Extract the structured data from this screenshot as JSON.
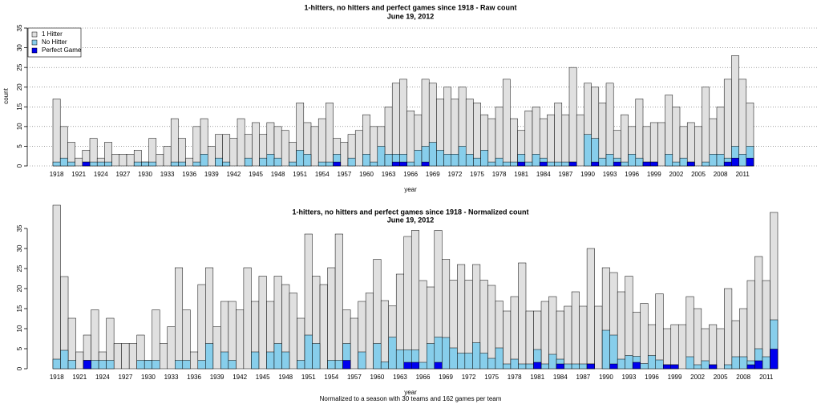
{
  "chart_data": [
    {
      "type": "bar",
      "title": "1-hitters, no hitters and perfect games since 1918 - Raw count",
      "subtitle": "June 19, 2012",
      "xlabel": "year",
      "ylabel": "count",
      "ylim": [
        0,
        35
      ],
      "yticks": [
        0,
        5,
        10,
        15,
        20,
        25,
        30,
        35
      ],
      "grid": true,
      "legend": "top-left",
      "categories": [
        "1918",
        null,
        null,
        "1921",
        null,
        null,
        "1924",
        null,
        null,
        "1927",
        null,
        null,
        "1930",
        null,
        null,
        "1933",
        null,
        null,
        "1936",
        null,
        null,
        "1939",
        null,
        null,
        "1942",
        null,
        null,
        "1945",
        null,
        null,
        "1948",
        null,
        null,
        "1951",
        null,
        null,
        "1954",
        null,
        null,
        "1957",
        null,
        null,
        "1960",
        null,
        null,
        "1963",
        null,
        null,
        "1966",
        null,
        null,
        "1969",
        null,
        null,
        "1972",
        null,
        null,
        "1975",
        null,
        null,
        "1978",
        null,
        null,
        "1981",
        null,
        null,
        "1984",
        null,
        null,
        "1987",
        null,
        null,
        "1990",
        null,
        null,
        "1993",
        null,
        null,
        "1996",
        null,
        null,
        "1999",
        null,
        null,
        "2002",
        null,
        null,
        "2005",
        null,
        null,
        "2008",
        null,
        null,
        "2011",
        null
      ],
      "series": [
        {
          "name": "1 Hitter",
          "color": "#e0e0e0",
          "values": [
            17,
            10,
            6,
            2,
            4,
            7,
            2,
            6,
            3,
            3,
            3,
            4,
            1,
            7,
            3,
            5,
            12,
            7,
            2,
            10,
            12,
            5,
            8,
            8,
            7,
            12,
            8,
            11,
            8,
            11,
            10,
            9,
            6,
            16,
            11,
            10,
            12,
            16,
            7,
            6,
            8,
            9,
            13,
            10,
            10,
            15,
            21,
            22,
            14,
            13,
            22,
            21,
            17,
            20,
            17,
            20,
            17,
            16,
            13,
            12,
            15,
            22,
            12,
            9,
            14,
            15,
            12,
            13,
            16,
            13,
            25,
            13,
            21,
            20,
            16,
            21,
            9,
            13,
            10,
            17,
            10,
            11,
            11,
            18,
            15,
            10,
            11,
            10,
            20,
            12,
            15,
            22,
            28,
            22,
            16
          ]
        },
        {
          "name": "No Hitter",
          "color": "#87ceeb",
          "values": [
            1,
            2,
            1,
            0,
            1,
            1,
            1,
            1,
            0,
            0,
            0,
            1,
            1,
            1,
            0,
            0,
            1,
            1,
            0,
            1,
            3,
            0,
            2,
            1,
            0,
            0,
            2,
            0,
            2,
            3,
            2,
            0,
            1,
            4,
            3,
            0,
            1,
            1,
            3,
            0,
            2,
            0,
            3,
            1,
            5,
            3,
            3,
            3,
            1,
            4,
            5,
            6,
            4,
            3,
            3,
            5,
            3,
            2,
            4,
            1,
            2,
            1,
            1,
            3,
            1,
            3,
            2,
            1,
            1,
            1,
            1,
            0,
            8,
            7,
            2,
            3,
            2,
            1,
            3,
            2,
            1,
            1,
            0,
            3,
            1,
            2,
            1,
            0,
            1,
            3,
            3,
            2,
            5,
            3,
            5
          ]
        },
        {
          "name": "Perfect Game",
          "color": "#0000ee",
          "values": [
            0,
            0,
            0,
            0,
            1,
            0,
            0,
            0,
            0,
            0,
            0,
            0,
            0,
            0,
            0,
            0,
            0,
            0,
            0,
            0,
            0,
            0,
            0,
            0,
            0,
            0,
            0,
            0,
            0,
            0,
            0,
            0,
            0,
            0,
            0,
            0,
            0,
            0,
            1,
            0,
            0,
            0,
            0,
            0,
            0,
            0,
            1,
            1,
            0,
            0,
            1,
            0,
            0,
            0,
            0,
            0,
            0,
            0,
            0,
            0,
            0,
            0,
            0,
            1,
            0,
            0,
            1,
            0,
            0,
            0,
            1,
            0,
            0,
            1,
            0,
            0,
            1,
            0,
            0,
            0,
            1,
            1,
            0,
            0,
            0,
            0,
            1,
            0,
            0,
            0,
            0,
            1,
            2,
            0,
            2
          ]
        }
      ]
    },
    {
      "type": "bar",
      "title": "1-hitters, no hitters and perfect games since 1918 - Normalized count",
      "subtitle": "June 19, 2012",
      "xlabel": "year",
      "caption": "Normalized to a season with 30 teams and 162 games per team",
      "ylim": [
        0,
        41.6
      ],
      "yticks": [
        0,
        5,
        10,
        15,
        20,
        25,
        30,
        35
      ],
      "grid": false,
      "categories": [
        "1918",
        null,
        null,
        "1921",
        null,
        null,
        "1924",
        null,
        null,
        "1927",
        null,
        null,
        "1930",
        null,
        null,
        "1933",
        null,
        null,
        "1936",
        null,
        null,
        "1939",
        null,
        null,
        "1942",
        null,
        null,
        "1945",
        null,
        null,
        "1948",
        null,
        null,
        "1951",
        null,
        null,
        "1954",
        null,
        null,
        "1957",
        null,
        null,
        "1960",
        null,
        null,
        "1963",
        null,
        null,
        "1966",
        null,
        null,
        "1969",
        null,
        null,
        "1972",
        null,
        null,
        "1975",
        null,
        null,
        "1978",
        null,
        null,
        "1981",
        null,
        null,
        "1984",
        null,
        null,
        "1987",
        null,
        null,
        "1990",
        null,
        null,
        "1993",
        null,
        null,
        "1996",
        null,
        null,
        "1999",
        null,
        null,
        "2002",
        null,
        null,
        "2005",
        null,
        null,
        "2008",
        null,
        null,
        "2011",
        null
      ],
      "series": [
        {
          "color": "#e0e0e0",
          "values": [
            40.8,
            23,
            12.6,
            4.2,
            8.4,
            14.7,
            4.2,
            12.6,
            6.3,
            6.3,
            6.3,
            8.4,
            2.1,
            14.7,
            6.3,
            10.5,
            25.2,
            14.7,
            4.2,
            21,
            25.2,
            10.5,
            16.8,
            16.8,
            14.7,
            25.2,
            16.8,
            23.1,
            16.8,
            23.1,
            21,
            18.9,
            12.6,
            33.6,
            23.1,
            21,
            25.2,
            33.6,
            14.7,
            12.6,
            16.8,
            18.9,
            27.3,
            17,
            15.7,
            23.6,
            33,
            34.5,
            22,
            20.4,
            34.5,
            27.3,
            22.1,
            26,
            22.1,
            26,
            22.1,
            20.8,
            16.9,
            14.4,
            18,
            26.4,
            14.4,
            14.4,
            16.8,
            18,
            14.4,
            15.6,
            19.2,
            15.6,
            30,
            15.6,
            25.2,
            24,
            19.2,
            23.1,
            14.1,
            16.3,
            11,
            18.7,
            10,
            11,
            11,
            18,
            15,
            10,
            11,
            10,
            20,
            12,
            15,
            22,
            28,
            22,
            39
          ]
        },
        {
          "color": "#87ceeb",
          "values": [
            2.4,
            4.6,
            2.1,
            0,
            2.1,
            2.1,
            2.1,
            2.1,
            0,
            0,
            0,
            2.1,
            2.1,
            2.1,
            0,
            0,
            2.1,
            2.1,
            0,
            2.1,
            6.3,
            0,
            4.2,
            2.1,
            0,
            0,
            4.2,
            0,
            4.2,
            6.3,
            4.2,
            0,
            2.1,
            8.4,
            6.3,
            0,
            2.1,
            2.1,
            6.3,
            0,
            4.2,
            0,
            6.3,
            1.7,
            7.9,
            4.7,
            4.7,
            4.7,
            1.6,
            6.3,
            7.9,
            7.8,
            5.2,
            3.9,
            3.9,
            6.5,
            3.9,
            2.6,
            5.2,
            1.2,
            2.4,
            1.2,
            1.2,
            4.8,
            1.2,
            3.6,
            2.4,
            1.2,
            1.2,
            1.2,
            1.2,
            0,
            9.6,
            8.4,
            2.4,
            3.3,
            3.1,
            1.3,
            3.3,
            2.2,
            1,
            1,
            0,
            3,
            1,
            2,
            1,
            0,
            1,
            3,
            3,
            2,
            5,
            3,
            12.2
          ]
        },
        {
          "color": "#0000ee",
          "values": [
            0,
            0,
            0,
            0,
            2.1,
            0,
            0,
            0,
            0,
            0,
            0,
            0,
            0,
            0,
            0,
            0,
            0,
            0,
            0,
            0,
            0,
            0,
            0,
            0,
            0,
            0,
            0,
            0,
            0,
            0,
            0,
            0,
            0,
            0,
            0,
            0,
            0,
            0,
            2.1,
            0,
            0,
            0,
            0,
            0,
            0,
            0,
            1.6,
            1.6,
            0,
            0,
            1.6,
            0,
            0,
            0,
            0,
            0,
            0,
            0,
            0,
            0,
            0,
            0,
            0,
            1.6,
            0,
            0,
            1.2,
            0,
            0,
            0,
            1.2,
            0,
            0,
            1.2,
            0,
            0,
            1.6,
            0,
            0,
            0,
            1,
            1,
            0,
            0,
            0,
            0,
            1,
            0,
            0,
            0,
            0,
            1,
            2,
            0,
            4.9
          ]
        }
      ]
    }
  ]
}
